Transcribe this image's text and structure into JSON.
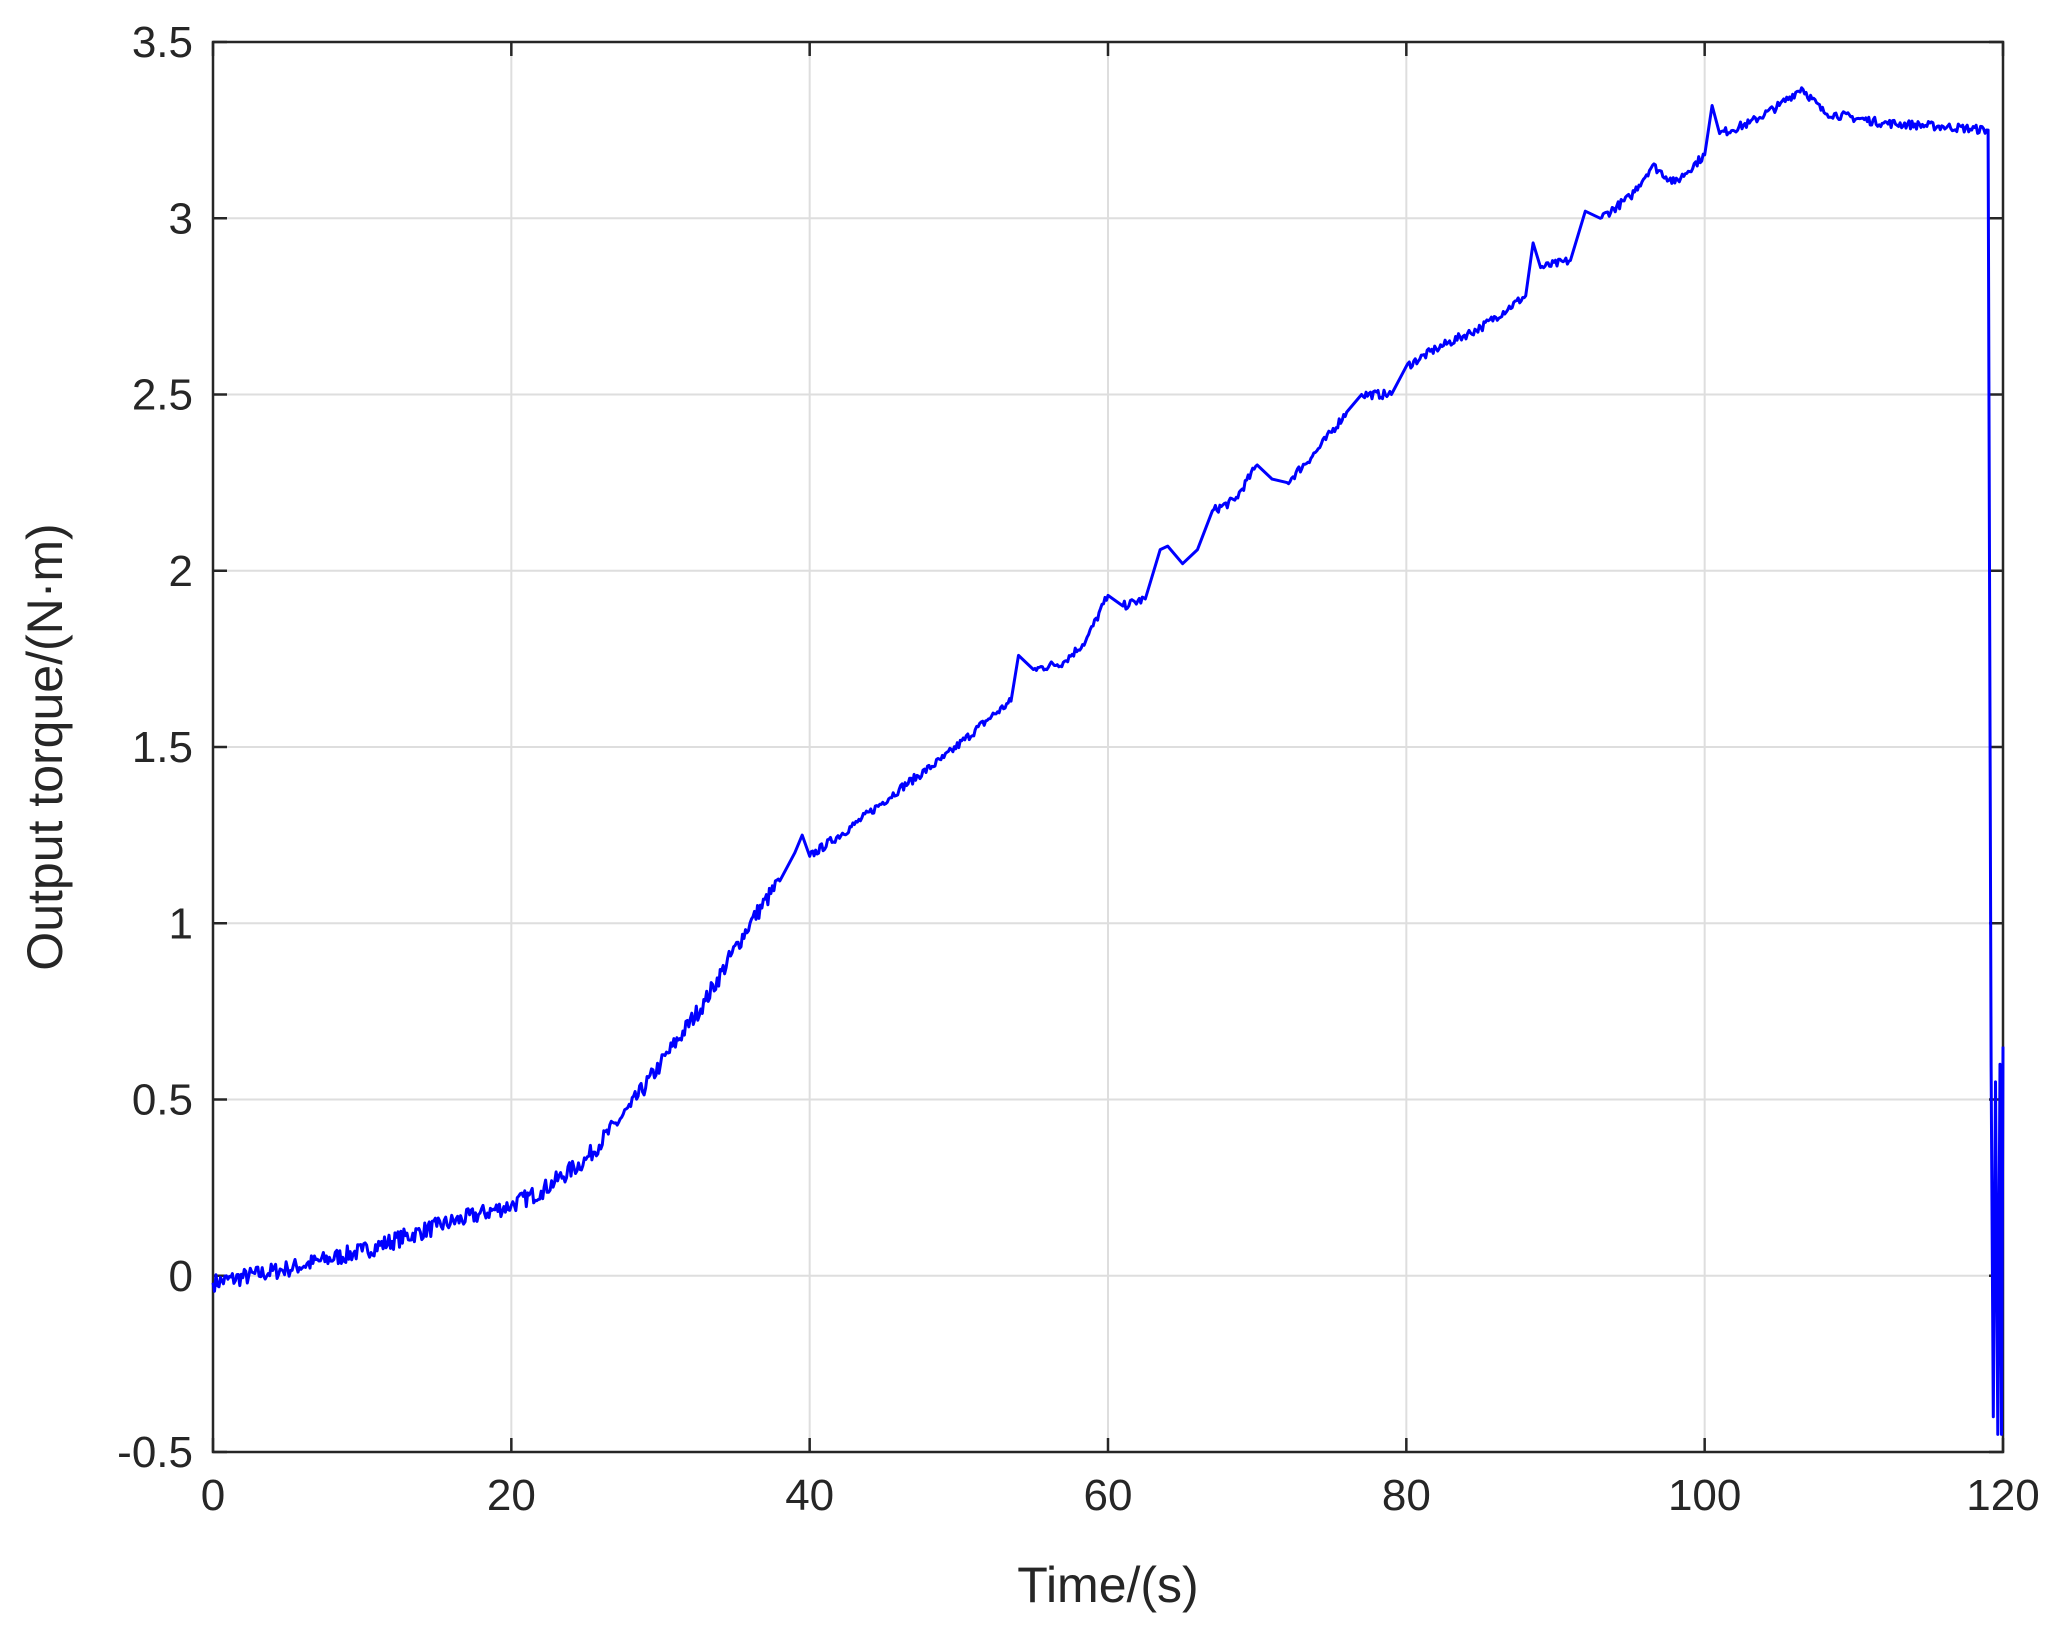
{
  "chart_data": {
    "type": "line",
    "title": "",
    "xlabel": "Time/(s)",
    "ylabel": "Output torque/(N·m)",
    "xlim": [
      0,
      120
    ],
    "ylim": [
      -0.5,
      3.5
    ],
    "x_ticks": [
      "0",
      "20",
      "40",
      "60",
      "80",
      "100",
      "120"
    ],
    "y_ticks": [
      "-0.5",
      "0",
      "0.5",
      "1",
      "1.5",
      "2",
      "2.5",
      "3",
      "3.5"
    ],
    "grid": true,
    "line_color": "#0000ff",
    "series": [
      {
        "x": [
          0,
          5,
          10,
          15,
          20,
          22,
          25,
          28,
          30,
          33,
          36,
          38,
          39,
          39.5,
          40,
          43,
          46,
          49,
          52,
          53.5,
          54,
          55,
          57,
          58.5,
          60,
          61,
          62.5,
          63.5,
          64,
          65,
          66,
          67,
          68.5,
          70,
          71,
          72,
          74,
          76,
          77,
          79,
          80,
          82,
          85,
          88,
          88.5,
          89,
          91,
          92,
          93,
          95,
          96.5,
          98,
          100,
          100.5,
          101,
          103,
          105,
          106.5,
          108,
          112,
          116,
          119,
          119.2,
          119.35,
          119.5,
          119.65,
          119.8,
          119.9,
          120
        ],
        "y": [
          -0.02,
          0.02,
          0.07,
          0.14,
          0.2,
          0.24,
          0.33,
          0.48,
          0.6,
          0.78,
          1.0,
          1.12,
          1.2,
          1.25,
          1.19,
          1.28,
          1.38,
          1.47,
          1.58,
          1.63,
          1.76,
          1.72,
          1.74,
          1.8,
          1.93,
          1.9,
          1.92,
          2.06,
          2.07,
          2.02,
          2.06,
          2.17,
          2.2,
          2.3,
          2.26,
          2.25,
          2.34,
          2.45,
          2.5,
          2.5,
          2.58,
          2.63,
          2.69,
          2.78,
          2.93,
          2.86,
          2.88,
          3.02,
          3.0,
          3.06,
          3.15,
          3.1,
          3.18,
          3.32,
          3.24,
          3.27,
          3.32,
          3.37,
          3.3,
          3.27,
          3.26,
          3.25,
          0.6,
          -0.4,
          0.55,
          -0.45,
          0.6,
          -0.45,
          0.65
        ]
      }
    ]
  }
}
